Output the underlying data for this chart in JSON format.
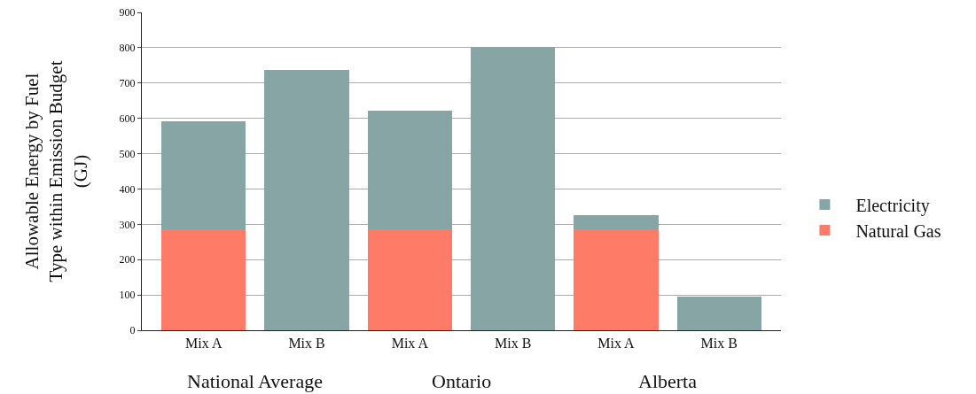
{
  "chart_data": {
    "type": "bar",
    "stacked": true,
    "ylabel": "Allowable Energy by Fuel\nType within Emission Budget\n(GJ)",
    "categories": [
      "Mix A",
      "Mix B",
      "Mix A",
      "Mix B",
      "Mix A",
      "Mix B"
    ],
    "series": [
      {
        "name": "Natural Gas",
        "color": "#fd7b67",
        "values": [
          285,
          0,
          285,
          0,
          285,
          0
        ]
      },
      {
        "name": "Electricity",
        "color": "#86a5a4",
        "values": [
          307,
          737,
          337,
          802,
          41,
          95
        ]
      }
    ],
    "annotations": [
      "National Average",
      "Ontario",
      "Alberta"
    ],
    "ylim": [
      0,
      900
    ],
    "yticks": [
      0,
      100,
      200,
      300,
      400,
      500,
      600,
      700,
      800,
      900
    ],
    "grid": "y",
    "legend": "right"
  }
}
